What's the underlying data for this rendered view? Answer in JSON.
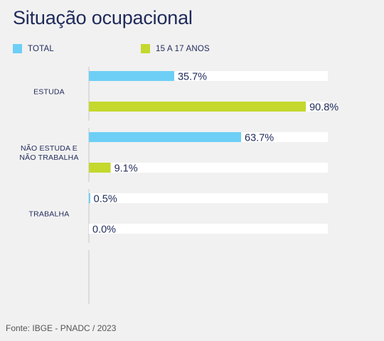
{
  "chart_data": {
    "type": "bar",
    "orientation": "horizontal",
    "title": "Situação ocupacional",
    "categories": [
      {
        "label": "ESTUDA",
        "lines": [
          "ESTUDA"
        ]
      },
      {
        "label": "NÃO ESTUDA E NÃO TRABALHA",
        "lines": [
          "NÃO ESTUDA E",
          "NÃO TRABALHA"
        ]
      },
      {
        "label": "TRABALHA",
        "lines": [
          "TRABALHA"
        ]
      }
    ],
    "series": [
      {
        "name": "TOTAL",
        "color": "#6dcff6",
        "values": [
          35.7,
          63.7,
          0.5
        ]
      },
      {
        "name": "15 A 17 ANOS",
        "color": "#c4d82e",
        "values": [
          90.8,
          9.1,
          0.0
        ]
      }
    ],
    "value_labels": [
      [
        "35.7%",
        "63.7%",
        "0.5%"
      ],
      [
        "90.8%",
        "9.1%",
        "0.0%"
      ]
    ],
    "xlim": [
      0,
      100
    ],
    "track_color": "#ffffff",
    "grid": false,
    "legend_position": "top-left"
  },
  "source": "Fonte: IBGE - PNADC / 2023"
}
